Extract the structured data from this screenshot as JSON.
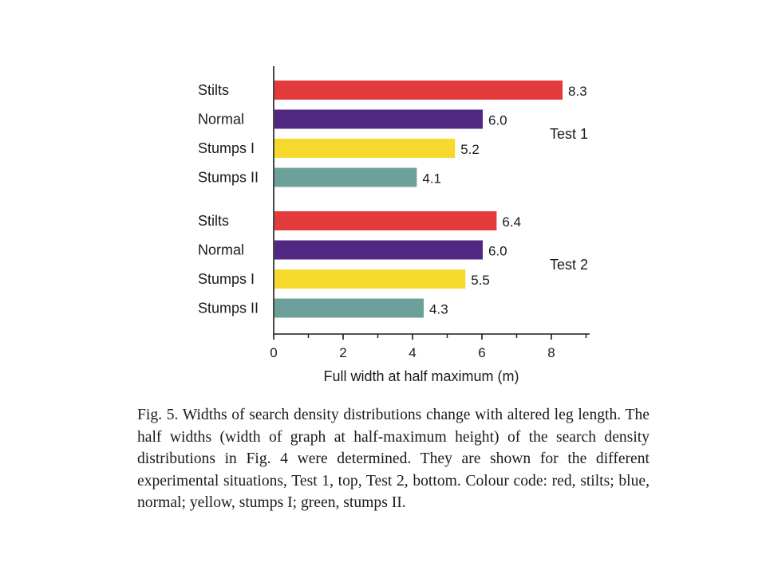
{
  "chart_data": {
    "type": "bar",
    "orientation": "horizontal",
    "groups": [
      {
        "name": "Test 1",
        "categories": [
          "Stilts",
          "Normal",
          "Stumps I",
          "Stumps II"
        ],
        "values": [
          8.3,
          6.0,
          5.2,
          4.1
        ],
        "value_labels": [
          "8.3",
          "6.0",
          "5.2",
          "4.1"
        ]
      },
      {
        "name": "Test 2",
        "categories": [
          "Stilts",
          "Normal",
          "Stumps I",
          "Stumps II"
        ],
        "values": [
          6.4,
          6.0,
          5.5,
          4.3
        ],
        "value_labels": [
          "6.4",
          "6.0",
          "5.5",
          "4.3"
        ]
      }
    ],
    "colors": [
      "#e33b3c",
      "#512882",
      "#f7d92d",
      "#6d9f9b"
    ],
    "xlabel": "Full width at half maximum (m)",
    "xlim": [
      0,
      9
    ],
    "xticks": [
      "0",
      "2",
      "4",
      "6",
      "8"
    ],
    "grid": false
  },
  "caption": "Fig. 5. Widths of search density distributions change with altered leg length. The half widths (width of graph at half-maximum height) of the search density distributions in Fig. 4 were determined. They are shown for the different experimental situations, Test 1, top, Test 2, bottom. Colour code: red, stilts; blue, normal; yellow, stumps I; green, stumps II."
}
